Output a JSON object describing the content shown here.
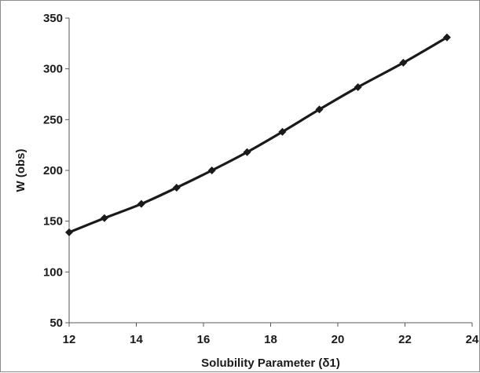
{
  "chart_data": {
    "type": "line",
    "title": "",
    "xlabel": "Solubility Parameter (δ1)",
    "ylabel": "W (obs)",
    "xlim": [
      12,
      24
    ],
    "ylim": [
      50,
      350
    ],
    "xticks": [
      12,
      14,
      16,
      18,
      20,
      22,
      24
    ],
    "yticks": [
      50,
      100,
      150,
      200,
      250,
      300,
      350
    ],
    "grid": false,
    "legend": "none",
    "series": [
      {
        "x": [
          12.0,
          13.05,
          14.15,
          15.2,
          16.25,
          17.3,
          18.35,
          19.45,
          20.6,
          21.95,
          23.25
        ],
        "y": [
          139,
          153,
          167,
          183,
          200,
          218,
          238,
          260,
          282,
          306,
          331
        ],
        "color": "#1a1a1a",
        "marker": "diamond"
      }
    ]
  }
}
